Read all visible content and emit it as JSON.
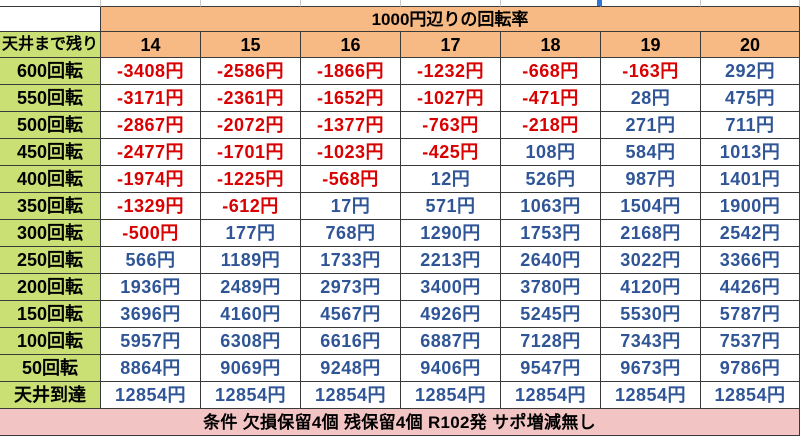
{
  "colors": {
    "negative_text": "#D80000",
    "positive_text": "#2F5597",
    "header_fill": "#F8BA85",
    "label_fill": "#CADF74",
    "note_fill": "#F2C4C4",
    "selected_marker": "#2E75D6"
  },
  "chart_data": {
    "type": "table",
    "title": "1000円辺りの回転率",
    "row_header_label": "天井まで残り",
    "columns": [
      14,
      15,
      16,
      17,
      18,
      19,
      20
    ],
    "unit": "円",
    "rows": [
      {
        "label": "600回転",
        "values": [
          -3408,
          -2586,
          -1866,
          -1232,
          -668,
          -163,
          292
        ]
      },
      {
        "label": "550回転",
        "values": [
          -3171,
          -2361,
          -1652,
          -1027,
          -471,
          28,
          475
        ]
      },
      {
        "label": "500回転",
        "values": [
          -2867,
          -2072,
          -1377,
          -763,
          -218,
          271,
          711
        ]
      },
      {
        "label": "450回転",
        "values": [
          -2477,
          -1701,
          -1023,
          -425,
          108,
          584,
          1013
        ]
      },
      {
        "label": "400回転",
        "values": [
          -1974,
          -1225,
          -568,
          12,
          526,
          987,
          1401
        ]
      },
      {
        "label": "350回転",
        "values": [
          -1329,
          -612,
          17,
          571,
          1063,
          1504,
          1900
        ]
      },
      {
        "label": "300回転",
        "values": [
          -500,
          177,
          768,
          1290,
          1753,
          2168,
          2542
        ]
      },
      {
        "label": "250回転",
        "values": [
          566,
          1189,
          1733,
          2213,
          2640,
          3022,
          3366
        ]
      },
      {
        "label": "200回転",
        "values": [
          1936,
          2489,
          2973,
          3400,
          3780,
          4120,
          4426
        ]
      },
      {
        "label": "150回転",
        "values": [
          3696,
          4160,
          4567,
          4926,
          5245,
          5530,
          5787
        ]
      },
      {
        "label": "100回転",
        "values": [
          5957,
          6308,
          6616,
          6887,
          7128,
          7343,
          7537
        ]
      },
      {
        "label": "50回転",
        "values": [
          8864,
          9069,
          9248,
          9406,
          9547,
          9673,
          9786
        ]
      },
      {
        "label": "天井到達",
        "values": [
          12854,
          12854,
          12854,
          12854,
          12854,
          12854,
          12854
        ]
      }
    ],
    "note": "条件 欠損保留4個 残保留4個 R102発 サポ増減無し"
  }
}
